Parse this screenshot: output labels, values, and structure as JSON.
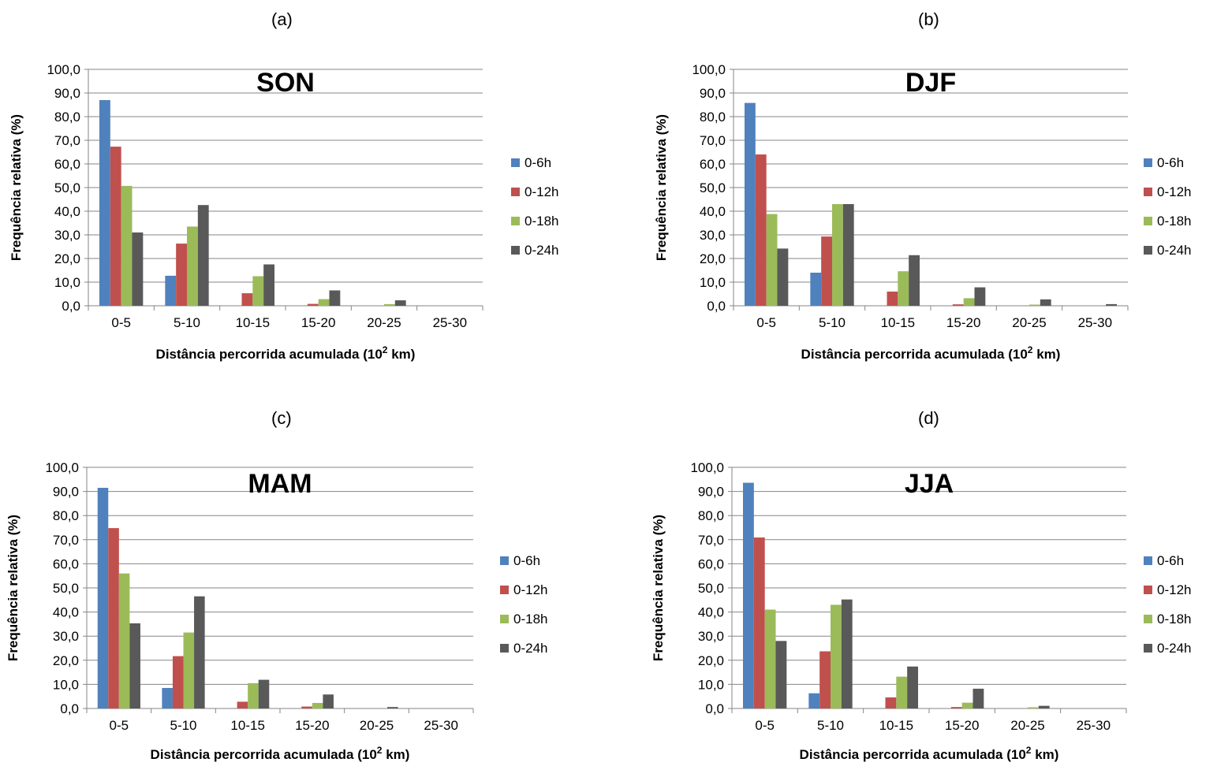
{
  "colors": {
    "0-6h": "#4f81bd",
    "0-12h": "#c0504d",
    "0-18h": "#9bbb59",
    "0-24h": "#595959",
    "grid": "#868686"
  },
  "chart_data": [
    {
      "type": "bar",
      "panel_label": "(a)",
      "title": "SON",
      "xlabel": "Distância percorrida acumulada (10",
      "xlabel_sup": "2",
      "xlabel_end": " km)",
      "ylabel": "Frequência relativa (%)",
      "ylim": [
        0,
        100
      ],
      "yticks": [
        "0,0",
        "10,0",
        "20,0",
        "30,0",
        "40,0",
        "50,0",
        "60,0",
        "70,0",
        "80,0",
        "90,0",
        "100,0"
      ],
      "categories": [
        "0-5",
        "5-10",
        "10-15",
        "15-20",
        "20-25",
        "25-30"
      ],
      "legend_position": "right",
      "series": [
        {
          "name": "0-6h",
          "values": [
            87.0,
            12.7,
            0,
            0,
            0,
            0
          ]
        },
        {
          "name": "0-12h",
          "values": [
            67.3,
            26.3,
            5.3,
            0.8,
            0,
            0
          ]
        },
        {
          "name": "0-18h",
          "values": [
            50.7,
            33.5,
            12.5,
            2.8,
            0.7,
            0
          ]
        },
        {
          "name": "0-24h",
          "values": [
            31.0,
            42.6,
            17.5,
            6.5,
            2.3,
            0
          ]
        }
      ]
    },
    {
      "type": "bar",
      "panel_label": "(b)",
      "title": "DJF",
      "xlabel": "Distância percorrida acumulada (10",
      "xlabel_sup": "2",
      "xlabel_end": " km)",
      "ylabel": "Frequência relativa (%)",
      "ylim": [
        0,
        100
      ],
      "yticks": [
        "0,0",
        "10,0",
        "20,0",
        "30,0",
        "40,0",
        "50,0",
        "60,0",
        "70,0",
        "80,0",
        "90,0",
        "100,0"
      ],
      "categories": [
        "0-5",
        "5-10",
        "10-15",
        "15-20",
        "20-25",
        "25-30"
      ],
      "legend_position": "right",
      "series": [
        {
          "name": "0-6h",
          "values": [
            85.8,
            14.0,
            0,
            0,
            0,
            0
          ]
        },
        {
          "name": "0-12h",
          "values": [
            64.0,
            29.3,
            6.0,
            0.6,
            0,
            0
          ]
        },
        {
          "name": "0-18h",
          "values": [
            38.8,
            43.0,
            14.6,
            3.2,
            0.5,
            0
          ]
        },
        {
          "name": "0-24h",
          "values": [
            24.2,
            43.0,
            21.4,
            7.8,
            2.7,
            0.7
          ]
        }
      ]
    },
    {
      "type": "bar",
      "panel_label": "(c)",
      "title": "MAM",
      "xlabel": "Distância percorrida acumulada (10",
      "xlabel_sup": "2",
      "xlabel_end": " km)",
      "ylabel": "Frequência relativa (%)",
      "ylim": [
        0,
        100
      ],
      "yticks": [
        "0,0",
        "10,0",
        "20,0",
        "30,0",
        "40,0",
        "50,0",
        "60,0",
        "70,0",
        "80,0",
        "90,0",
        "100,0"
      ],
      "categories": [
        "0-5",
        "5-10",
        "10-15",
        "15-20",
        "20-25",
        "25-30"
      ],
      "legend_position": "right",
      "series": [
        {
          "name": "0-6h",
          "values": [
            91.5,
            8.5,
            0,
            0,
            0,
            0
          ]
        },
        {
          "name": "0-12h",
          "values": [
            74.8,
            21.7,
            2.8,
            0.8,
            0,
            0
          ]
        },
        {
          "name": "0-18h",
          "values": [
            56.0,
            31.5,
            10.5,
            2.3,
            0,
            0
          ]
        },
        {
          "name": "0-24h",
          "values": [
            35.3,
            46.5,
            11.9,
            5.8,
            0.6,
            0
          ]
        }
      ]
    },
    {
      "type": "bar",
      "panel_label": "(d)",
      "title": "JJA",
      "xlabel": "Distância percorrida acumulada (10",
      "xlabel_sup": "2",
      "xlabel_end": " km)",
      "ylabel": "Frequência relativa (%)",
      "ylim": [
        0,
        100
      ],
      "yticks": [
        "0,0",
        "10,0",
        "20,0",
        "30,0",
        "40,0",
        "50,0",
        "60,0",
        "70,0",
        "80,0",
        "90,0",
        "100,0"
      ],
      "categories": [
        "0-5",
        "5-10",
        "10-15",
        "15-20",
        "20-25",
        "25-30"
      ],
      "legend_position": "right",
      "series": [
        {
          "name": "0-6h",
          "values": [
            93.6,
            6.3,
            0,
            0,
            0,
            0
          ]
        },
        {
          "name": "0-12h",
          "values": [
            70.9,
            23.7,
            4.6,
            0.6,
            0,
            0
          ]
        },
        {
          "name": "0-18h",
          "values": [
            41.0,
            43.0,
            13.2,
            2.4,
            0.5,
            0
          ]
        },
        {
          "name": "0-24h",
          "values": [
            28.0,
            45.2,
            17.4,
            8.2,
            1.1,
            0
          ]
        }
      ]
    }
  ]
}
